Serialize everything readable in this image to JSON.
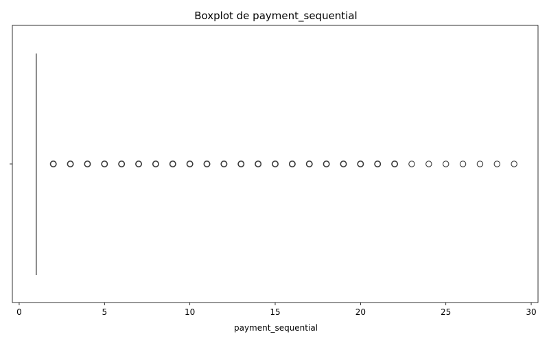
{
  "chart_data": {
    "type": "boxplot",
    "orientation": "horizontal",
    "title": "Boxplot de payment_sequential",
    "xlabel": "payment_sequential",
    "ylabel": "",
    "xlim": [
      -0.4,
      30.4
    ],
    "xticks": [
      0,
      5,
      10,
      15,
      20,
      25,
      30
    ],
    "grid": false,
    "box": {
      "min": 1,
      "q1": 1,
      "median": 1,
      "q3": 1,
      "max": 1
    },
    "outliers": [
      2,
      3,
      4,
      5,
      6,
      7,
      8,
      9,
      10,
      11,
      12,
      13,
      14,
      15,
      16,
      17,
      18,
      19,
      20,
      21,
      22,
      23,
      24,
      25,
      26,
      27,
      28,
      29
    ],
    "colors": {
      "box_line": "#3a3a3a",
      "outlier_edge": "#3a3a3a",
      "axes": "#000000"
    }
  }
}
